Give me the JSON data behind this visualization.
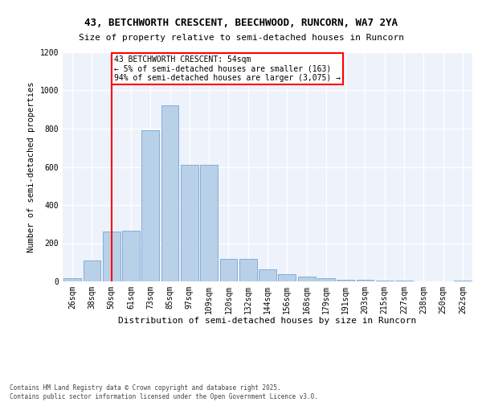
{
  "title_line1": "43, BETCHWORTH CRESCENT, BEECHWOOD, RUNCORN, WA7 2YA",
  "title_line2": "Size of property relative to semi-detached houses in Runcorn",
  "xlabel": "Distribution of semi-detached houses by size in Runcorn",
  "ylabel": "Number of semi-detached properties",
  "categories": [
    "26sqm",
    "38sqm",
    "50sqm",
    "61sqm",
    "73sqm",
    "85sqm",
    "97sqm",
    "109sqm",
    "120sqm",
    "132sqm",
    "144sqm",
    "156sqm",
    "168sqm",
    "179sqm",
    "191sqm",
    "203sqm",
    "215sqm",
    "227sqm",
    "238sqm",
    "250sqm",
    "262sqm"
  ],
  "values": [
    15,
    110,
    260,
    265,
    790,
    920,
    610,
    610,
    120,
    120,
    65,
    40,
    25,
    15,
    10,
    8,
    5,
    3,
    2,
    1,
    5
  ],
  "bar_color": "#b8d0e8",
  "bar_edge_color": "#6699cc",
  "vline_index": 2,
  "vline_color": "red",
  "annotation_text": "43 BETCHWORTH CRESCENT: 54sqm\n← 5% of semi-detached houses are smaller (163)\n94% of semi-detached houses are larger (3,075) →",
  "annotation_box_color": "white",
  "annotation_box_edge": "red",
  "ylim": [
    0,
    1200
  ],
  "yticks": [
    0,
    200,
    400,
    600,
    800,
    1000,
    1200
  ],
  "footer_text": "Contains HM Land Registry data © Crown copyright and database right 2025.\nContains public sector information licensed under the Open Government Licence v3.0.",
  "bg_color": "#eef2fb",
  "grid_color": "white",
  "title_fontsize": 9,
  "subtitle_fontsize": 8,
  "ylabel_fontsize": 7.5,
  "xlabel_fontsize": 8,
  "tick_fontsize": 7,
  "ann_fontsize": 7,
  "footer_fontsize": 5.5
}
